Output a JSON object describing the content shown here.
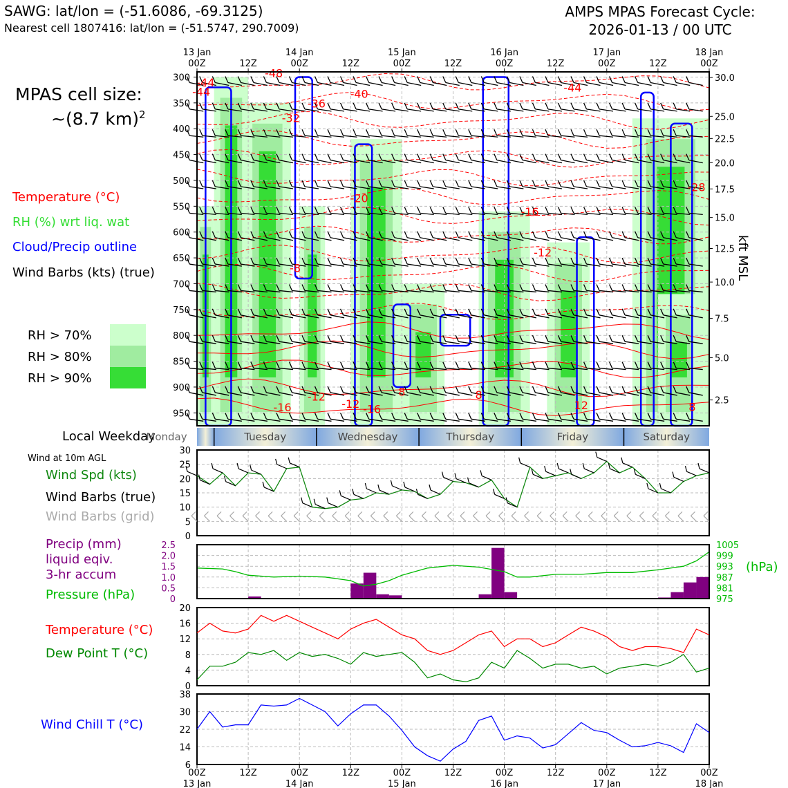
{
  "header": {
    "station_line": "SAWG: lat/lon = (-51.6086, -69.3125)",
    "nearest_cell_line": "Nearest cell 1807416: lat/lon = (-51.5747, 290.7009)",
    "forecast_title": "AMPS MPAS Forecast Cycle:",
    "forecast_cycle": "2026-01-13 / 00 UTC"
  },
  "cell_size": {
    "line1": "MPAS cell size:",
    "line2": "~(8.7 km)",
    "exponent": "2"
  },
  "legend": {
    "temperature": "Temperature (°C)",
    "rh": "RH (%) wrt liq. wat",
    "cloud": "Cloud/Precip outline",
    "wind": "Wind Barbs (kts) (true)",
    "rh70": "RH > 70%",
    "rh80": "RH > 80%",
    "rh90": "RH > 90%"
  },
  "colors": {
    "temperature": "#ff0000",
    "rh": "#33dd33",
    "cloud": "#0000ff",
    "rh70": "#ccffcc",
    "rh80": "#a0eca0",
    "rh90": "#36dd36",
    "precip": "#800080",
    "pressure": "#00bb00",
    "dewpoint": "#008800",
    "wind_speed": "#118811",
    "wind_grid": "#aaaaaa",
    "wind_chill": "#0000ff"
  },
  "time_axis": {
    "top_ticks": [
      {
        "day": "13 Jan",
        "hour": "00Z"
      },
      {
        "day": "",
        "hour": "12Z"
      },
      {
        "day": "14 Jan",
        "hour": "00Z"
      },
      {
        "day": "",
        "hour": "12Z"
      },
      {
        "day": "15 Jan",
        "hour": "00Z"
      },
      {
        "day": "",
        "hour": "12Z"
      },
      {
        "day": "16 Jan",
        "hour": "00Z"
      },
      {
        "day": "",
        "hour": "12Z"
      },
      {
        "day": "17 Jan",
        "hour": "00Z"
      },
      {
        "day": "",
        "hour": "12Z"
      },
      {
        "day": "18 Jan",
        "hour": "00Z"
      }
    ]
  },
  "weekday_bar": {
    "label": "Local Weekday",
    "days": [
      "Monday",
      "Tuesday",
      "Wednesday",
      "Thursday",
      "Friday",
      "Saturday"
    ]
  },
  "chart_data": [
    {
      "type": "heatmap",
      "title": "",
      "ylabel_right": "kft MSL",
      "pressure_ticks": [
        "300",
        "350",
        "400",
        "450",
        "500",
        "550",
        "600",
        "650",
        "700",
        "750",
        "800",
        "850",
        "900",
        "950"
      ],
      "pressure_values": [
        300,
        350,
        400,
        450,
        500,
        550,
        600,
        650,
        700,
        750,
        800,
        850,
        900,
        950
      ],
      "height_ticks": [
        "30.0",
        "25.0",
        "22.5",
        "20.0",
        "17.5",
        "15.0",
        "12.5",
        "10.0",
        "7.5",
        "5.0",
        "2.5"
      ],
      "height_values": [
        30.0,
        25.0,
        22.5,
        20.0,
        17.5,
        15.0,
        12.5,
        10.0,
        7.5,
        5.0,
        2.5
      ],
      "ylim": [
        300,
        975
      ],
      "x_hours": [
        0,
        120
      ],
      "temperature_labels": [
        {
          "t": 2,
          "p": 318,
          "text": "-44"
        },
        {
          "t": 1,
          "p": 336,
          "text": "-44"
        },
        {
          "t": 18,
          "p": 300,
          "text": "-48"
        },
        {
          "t": 38,
          "p": 340,
          "text": "-40"
        },
        {
          "t": 28,
          "p": 359,
          "text": "-36"
        },
        {
          "t": 22,
          "p": 387,
          "text": "-32"
        },
        {
          "t": 88,
          "p": 328,
          "text": "-44"
        },
        {
          "t": 117,
          "p": 521,
          "text": "-28"
        },
        {
          "t": 38,
          "p": 542,
          "text": "-20"
        },
        {
          "t": 78,
          "p": 568,
          "text": "-16"
        },
        {
          "t": 81,
          "p": 647,
          "text": "-12"
        },
        {
          "t": 23,
          "p": 677,
          "text": "-8"
        },
        {
          "t": 20,
          "p": 947,
          "text": "-16"
        },
        {
          "t": 28,
          "p": 926,
          "text": "-12"
        },
        {
          "t": 36,
          "p": 940,
          "text": "-12"
        },
        {
          "t": 41,
          "p": 950,
          "text": "-16"
        },
        {
          "t": 48,
          "p": 917,
          "text": "8"
        },
        {
          "t": 66,
          "p": 923,
          "text": "8"
        },
        {
          "t": 90,
          "p": 943,
          "text": "12"
        },
        {
          "t": 116,
          "p": 946,
          "text": "8"
        }
      ]
    },
    {
      "type": "line",
      "title": "Wind at 10m AGL",
      "labels": {
        "speed": "Wind Spd (kts)",
        "barbs_true": "Wind Barbs (true)",
        "barbs_grid": "Wind Barbs (grid)"
      },
      "ylim": [
        0,
        30
      ],
      "yticks": [
        0,
        5,
        10,
        15,
        20,
        25,
        30
      ],
      "x_hours": [
        0,
        3,
        6,
        9,
        12,
        15,
        18,
        21,
        24,
        27,
        30,
        33,
        36,
        39,
        42,
        45,
        48,
        51,
        54,
        57,
        60,
        63,
        66,
        69,
        72,
        75,
        78,
        81,
        84,
        87,
        90,
        93,
        96,
        99,
        102,
        105,
        108,
        111,
        114,
        117,
        120
      ],
      "series": [
        {
          "name": "Wind Spd (kts)",
          "values": [
            21,
            18,
            22,
            17.5,
            22,
            21.5,
            15.5,
            23.5,
            24,
            10,
            9.5,
            10,
            12.5,
            13,
            15,
            14.5,
            16,
            15.5,
            13,
            14.5,
            19,
            18.5,
            17,
            19.5,
            13,
            10,
            24,
            20,
            21,
            22,
            20,
            22,
            26,
            22,
            24,
            20,
            15,
            15,
            19,
            21,
            22
          ]
        }
      ]
    },
    {
      "type": "bar",
      "title": "Precip (mm) liquid eqiv. 3-hr accum",
      "labels": {
        "precip": "Precip (mm)",
        "precip2": "liquid eqiv.",
        "precip3": "3-hr accum",
        "pressure": "Pressure (hPa)",
        "pressure_unit": "(hPa)"
      },
      "ylim": [
        0,
        2.5
      ],
      "yticks": [
        "0",
        "0.5",
        "1.0",
        "1.5",
        "2.0",
        "2.5"
      ],
      "ytick_values": [
        0,
        0.5,
        1.0,
        1.5,
        2.0,
        2.5
      ],
      "pressure_ticks": [
        "975",
        "981",
        "987",
        "993",
        "999",
        "1005"
      ],
      "pressure_tick_values": [
        975,
        981,
        987,
        993,
        999,
        1005
      ],
      "pressure_ylim": [
        975,
        1005
      ],
      "bars": [
        {
          "t": 15,
          "value": 0.1
        },
        {
          "t": 39,
          "value": 0.7
        },
        {
          "t": 42,
          "value": 1.2
        },
        {
          "t": 45,
          "value": 0.2
        },
        {
          "t": 48,
          "value": 0.15
        },
        {
          "t": 69,
          "value": 0.2
        },
        {
          "t": 72,
          "value": 2.35
        },
        {
          "t": 75,
          "value": 0.3
        },
        {
          "t": 111,
          "value": 0.05
        },
        {
          "t": 114,
          "value": 0.3
        },
        {
          "t": 117,
          "value": 0.75
        },
        {
          "t": 120,
          "value": 1.0
        }
      ],
      "pressure_series": {
        "name": "Pressure (hPa)",
        "x_hours": [
          0,
          6,
          9,
          12,
          18,
          24,
          30,
          36,
          39,
          42,
          45,
          48,
          54,
          60,
          66,
          72,
          75,
          78,
          84,
          90,
          96,
          102,
          108,
          114,
          117,
          120
        ],
        "values": [
          992,
          991.5,
          990,
          988,
          987,
          987.5,
          987,
          985,
          982,
          983,
          985,
          988,
          992,
          993.5,
          992.5,
          990,
          987,
          987,
          988.5,
          988.5,
          989.5,
          989.5,
          991,
          993,
          996,
          1001
        ]
      }
    },
    {
      "type": "line",
      "title": "",
      "ylim": [
        0,
        20
      ],
      "yticks": [
        0,
        4,
        8,
        12,
        16,
        20
      ],
      "x_hours": [
        0,
        3,
        6,
        9,
        12,
        15,
        18,
        21,
        24,
        27,
        30,
        33,
        36,
        39,
        42,
        45,
        48,
        51,
        54,
        57,
        60,
        63,
        66,
        69,
        72,
        75,
        78,
        81,
        84,
        87,
        90,
        93,
        96,
        99,
        102,
        105,
        108,
        111,
        114,
        117,
        120
      ],
      "series": [
        {
          "name": "Temperature (°C)",
          "values": [
            13.5,
            16,
            14,
            13.5,
            14.5,
            18,
            16.5,
            18,
            16.5,
            15,
            13.5,
            12,
            14.5,
            16,
            17,
            15,
            13,
            12,
            9,
            8,
            9,
            11,
            13,
            14,
            10,
            12,
            12,
            10,
            11,
            13,
            15,
            14,
            12.5,
            10,
            9,
            10,
            10,
            9.5,
            8.5,
            14.5,
            13
          ]
        },
        {
          "name": "Dew Point T (°C)",
          "values": [
            1.5,
            5,
            5,
            6,
            8.5,
            8,
            9,
            6.5,
            8.5,
            7.5,
            8,
            7,
            5.5,
            8.5,
            7.5,
            8,
            8.5,
            6,
            2,
            3,
            1.5,
            1,
            2,
            6,
            4.5,
            9,
            7,
            4.5,
            5.5,
            5.5,
            4.5,
            5,
            3,
            4.5,
            5,
            5.5,
            5,
            6,
            8,
            3.5,
            4.5
          ]
        }
      ],
      "labels": {
        "temperature": "Temperature (°C)",
        "dewpoint": "Dew Point T (°C)"
      }
    },
    {
      "type": "line",
      "title": "",
      "ylim": [
        6,
        38
      ],
      "yticks": [
        6,
        14,
        22,
        30,
        38
      ],
      "x_hours": [
        0,
        3,
        6,
        9,
        12,
        15,
        18,
        21,
        24,
        27,
        30,
        33,
        36,
        39,
        42,
        45,
        48,
        51,
        54,
        57,
        60,
        63,
        66,
        69,
        72,
        75,
        78,
        81,
        84,
        87,
        90,
        93,
        96,
        99,
        102,
        105,
        108,
        111,
        114,
        117,
        120
      ],
      "series": [
        {
          "name": "Wind Chill T (°C)",
          "values": [
            22,
            30,
            23,
            24,
            24,
            33,
            32.5,
            33,
            36,
            33,
            30,
            23.5,
            29,
            33,
            33,
            28,
            21.5,
            14,
            10,
            7.5,
            13,
            16.5,
            26,
            28,
            17,
            19,
            18,
            13.5,
            15,
            20,
            25,
            21.5,
            20.5,
            17,
            14,
            14.5,
            16,
            14.5,
            11.5,
            24.5,
            20.5
          ]
        }
      ],
      "labels": {
        "windchill": "Wind Chill T (°C)"
      }
    }
  ],
  "bottom_axis": {
    "ticks": [
      {
        "hour": "00Z",
        "day": "13 Jan"
      },
      {
        "hour": "12Z",
        "day": ""
      },
      {
        "hour": "00Z",
        "day": "14 Jan"
      },
      {
        "hour": "12Z",
        "day": ""
      },
      {
        "hour": "00Z",
        "day": "15 Jan"
      },
      {
        "hour": "12Z",
        "day": ""
      },
      {
        "hour": "00Z",
        "day": "16 Jan"
      },
      {
        "hour": "12Z",
        "day": ""
      },
      {
        "hour": "00Z",
        "day": "17 Jan"
      },
      {
        "hour": "12Z",
        "day": ""
      },
      {
        "hour": "00Z",
        "day": "18 Jan"
      }
    ]
  }
}
